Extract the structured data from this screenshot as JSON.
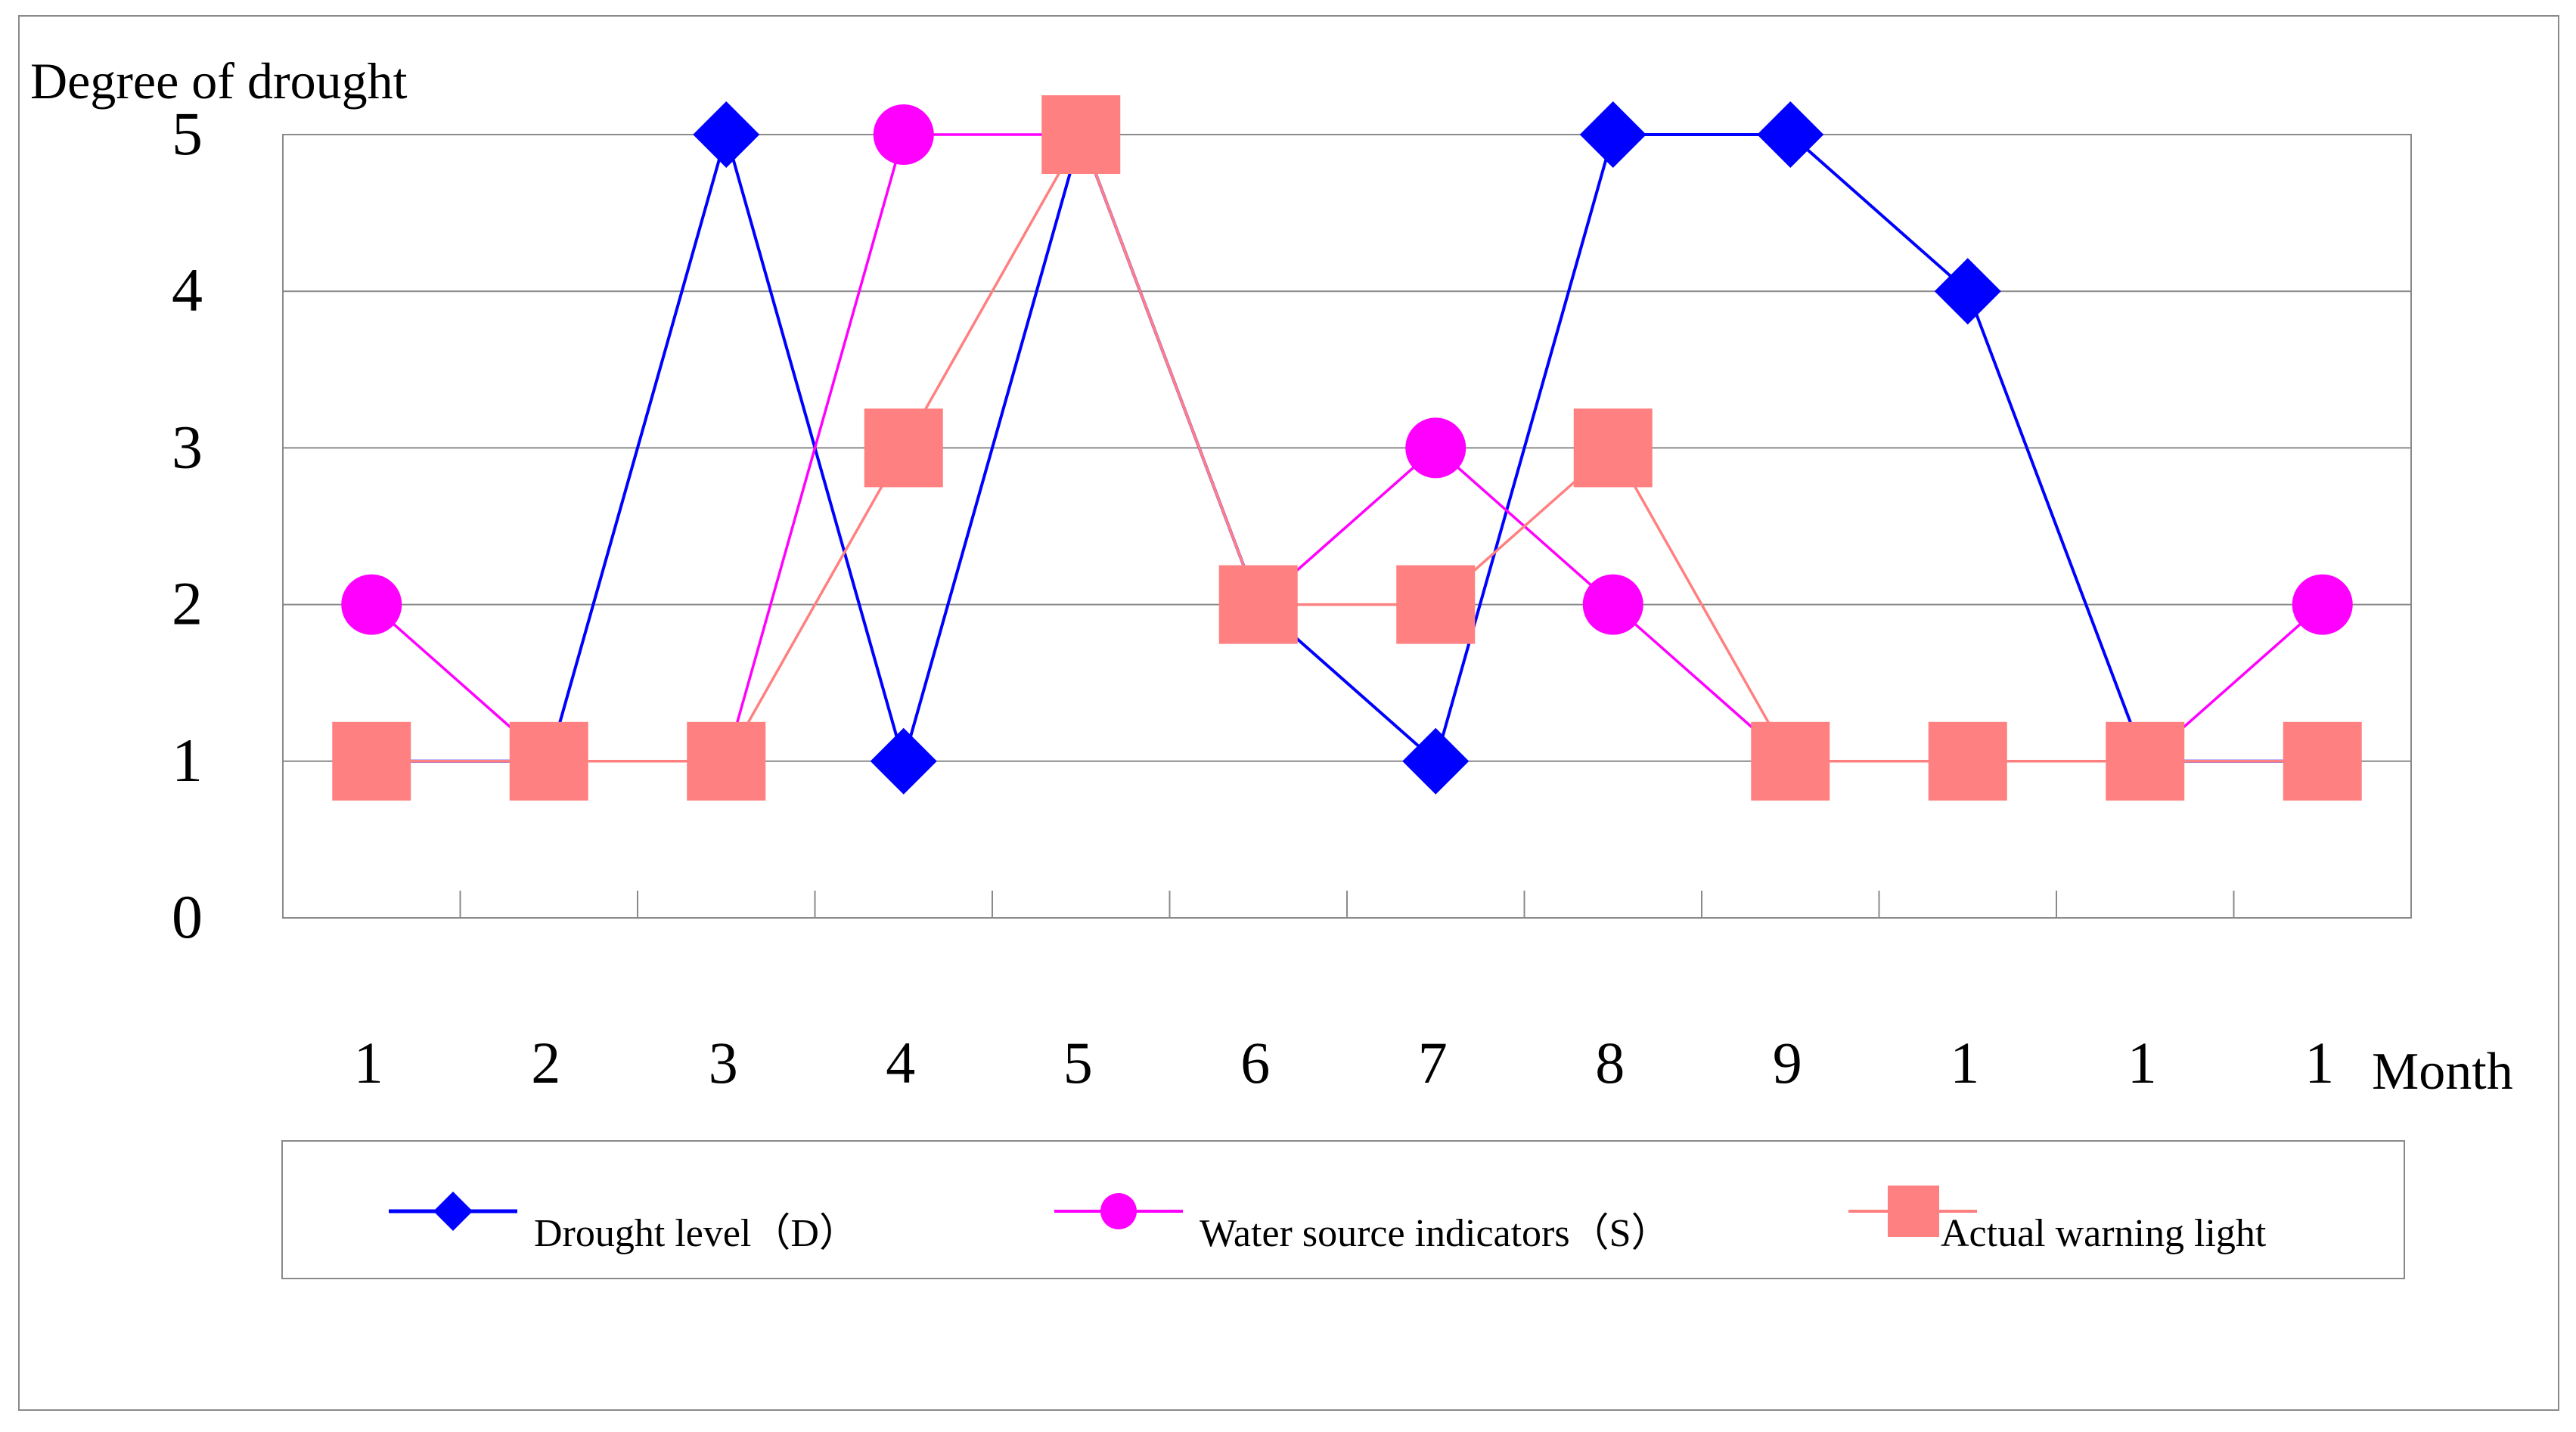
{
  "chart_data": {
    "type": "line",
    "ylabel": "Degree of drought",
    "xlabel": "Month",
    "categories": [
      "1",
      "2",
      "3",
      "4",
      "5",
      "6",
      "7",
      "8",
      "9",
      "1",
      "1",
      "1"
    ],
    "ylim": [
      0,
      5
    ],
    "yticks": [
      "0",
      "1",
      "2",
      "3",
      "4",
      "5"
    ],
    "grid": true,
    "legend_position": "bottom",
    "series": [
      {
        "name": "Drought level（D）",
        "marker": "diamond",
        "color": "#0000ff",
        "values": [
          1,
          1,
          5,
          1,
          5,
          2,
          1,
          5,
          5,
          4,
          1,
          1
        ]
      },
      {
        "name": "Water source indicators（S）",
        "marker": "circle",
        "color": "#ff00ff",
        "values": [
          2,
          1,
          1,
          5,
          5,
          2,
          3,
          2,
          1,
          1,
          1,
          2
        ]
      },
      {
        "name": "Actual warning light",
        "marker": "square",
        "color": "#ff8080",
        "values": [
          1,
          1,
          1,
          3,
          5,
          2,
          2,
          3,
          1,
          1,
          1,
          1
        ]
      }
    ]
  }
}
